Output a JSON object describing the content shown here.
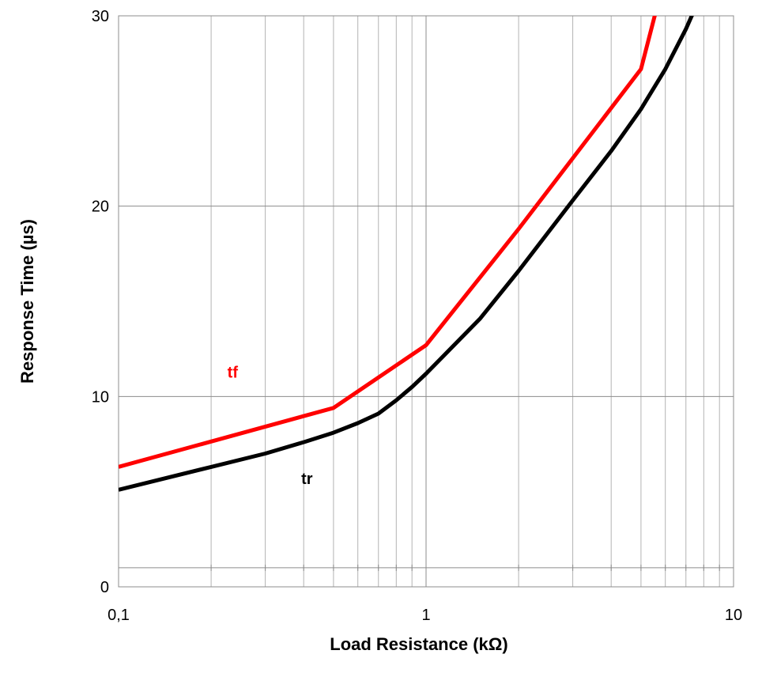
{
  "chart_data": {
    "type": "line",
    "title": "",
    "xlabel": "Load Resistance (kΩ)",
    "ylabel": "Response Time (µs)",
    "x_scale": "log",
    "xlim": [
      0.1,
      10
    ],
    "ylim": [
      0,
      30
    ],
    "x_ticks": [
      {
        "value": 0.1,
        "label": "0,1"
      },
      {
        "value": 1,
        "label": "1"
      },
      {
        "value": 10,
        "label": "10"
      }
    ],
    "y_ticks": [
      {
        "value": 0,
        "label": "0"
      },
      {
        "value": 10,
        "label": "10"
      },
      {
        "value": 20,
        "label": "20"
      },
      {
        "value": 30,
        "label": "30"
      }
    ],
    "grid": true,
    "baseline_y": 1,
    "series": [
      {
        "name": "tf",
        "color": "#ff0000",
        "label_at": {
          "x": 0.235,
          "y": 11
        },
        "points": [
          [
            0.1,
            6.3
          ],
          [
            0.5,
            9.4
          ],
          [
            1.0,
            12.7
          ],
          [
            2.0,
            18.8
          ],
          [
            5.0,
            27.2
          ],
          [
            5.75,
            31.0
          ]
        ]
      },
      {
        "name": "tr",
        "color": "#000000",
        "label_at": {
          "x": 0.41,
          "y": 5.4
        },
        "points": [
          [
            0.1,
            5.1
          ],
          [
            0.2,
            6.3
          ],
          [
            0.3,
            7.0
          ],
          [
            0.4,
            7.6
          ],
          [
            0.5,
            8.1
          ],
          [
            0.6,
            8.6
          ],
          [
            0.7,
            9.1
          ],
          [
            0.8,
            9.8
          ],
          [
            0.9,
            10.5
          ],
          [
            1.0,
            11.2
          ],
          [
            1.5,
            14.1
          ],
          [
            2.0,
            16.6
          ],
          [
            3.0,
            20.3
          ],
          [
            4.0,
            22.9
          ],
          [
            5.0,
            25.1
          ],
          [
            6.0,
            27.2
          ],
          [
            7.0,
            29.3
          ],
          [
            7.5,
            30.4
          ]
        ]
      }
    ]
  }
}
